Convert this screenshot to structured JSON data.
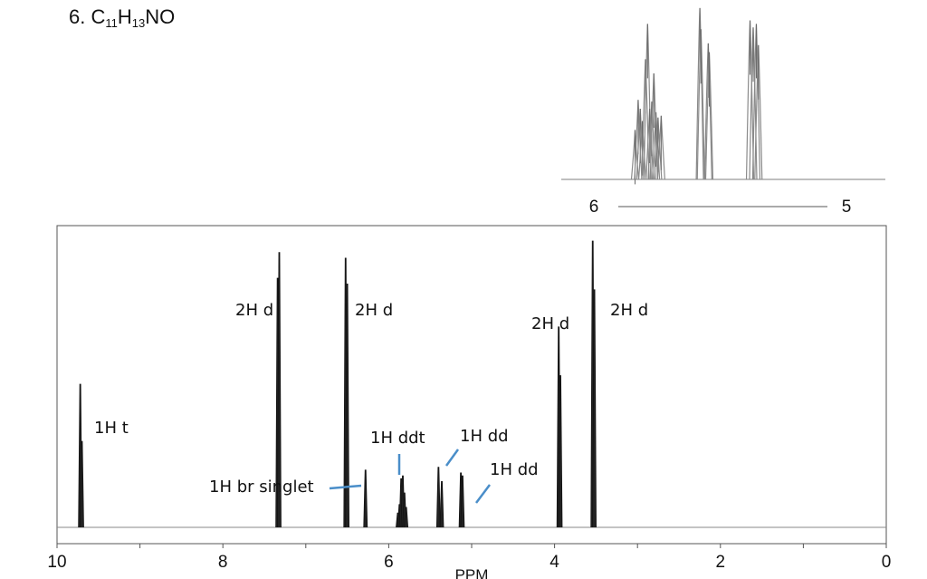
{
  "title": {
    "prefix": "6. C",
    "sub1": "11",
    "mid": "H",
    "sub2": "13",
    "suffix": "NO"
  },
  "chart_data": {
    "type": "line",
    "title": "6. C11H13NO",
    "xlabel": "PPM",
    "ylabel": "",
    "xlim": [
      10,
      0
    ],
    "x_ticks": [
      10,
      8,
      6,
      4,
      2,
      0
    ],
    "grid": false,
    "series": [
      {
        "peaks": [
          {
            "ppm": 9.72,
            "height": 0.5
          },
          {
            "ppm": 9.7,
            "height": 0.3
          },
          {
            "ppm": 7.34,
            "height": 0.87
          },
          {
            "ppm": 7.32,
            "height": 0.96
          },
          {
            "ppm": 6.52,
            "height": 0.94
          },
          {
            "ppm": 6.5,
            "height": 0.85
          },
          {
            "ppm": 6.28,
            "height": 0.2
          },
          {
            "ppm": 5.89,
            "height": 0.05
          },
          {
            "ppm": 5.87,
            "height": 0.08
          },
          {
            "ppm": 5.85,
            "height": 0.17
          },
          {
            "ppm": 5.83,
            "height": 0.18
          },
          {
            "ppm": 5.81,
            "height": 0.12
          },
          {
            "ppm": 5.79,
            "height": 0.07
          },
          {
            "ppm": 5.4,
            "height": 0.21
          },
          {
            "ppm": 5.36,
            "height": 0.16
          },
          {
            "ppm": 5.13,
            "height": 0.19
          },
          {
            "ppm": 5.11,
            "height": 0.18
          },
          {
            "ppm": 3.95,
            "height": 0.7
          },
          {
            "ppm": 3.93,
            "height": 0.53
          },
          {
            "ppm": 3.54,
            "height": 1.0
          },
          {
            "ppm": 3.52,
            "height": 0.83
          }
        ]
      }
    ],
    "annotations": [
      {
        "id": "t1",
        "text": "1H t",
        "ppm": 9.72
      },
      {
        "id": "d1",
        "text": "2H d",
        "ppm": 7.33
      },
      {
        "id": "d2",
        "text": "2H d",
        "ppm": 6.51
      },
      {
        "id": "brs",
        "text": "1H br singlet",
        "ppm": 6.28
      },
      {
        "id": "ddt",
        "text": "1H ddt",
        "ppm": 5.84
      },
      {
        "id": "dd1",
        "text": "1H dd",
        "ppm": 5.38
      },
      {
        "id": "dd2",
        "text": "1H dd",
        "ppm": 5.12
      },
      {
        "id": "d3",
        "text": "2H d",
        "ppm": 3.94
      },
      {
        "id": "d4",
        "text": "2H d",
        "ppm": 3.53
      }
    ],
    "inset": {
      "xlim": [
        6,
        5
      ],
      "x_ticks": [
        6,
        5
      ],
      "peaks": [
        {
          "ppm": 5.92,
          "height": 0.28
        },
        {
          "ppm": 5.905,
          "height": 0.45
        },
        {
          "ppm": 5.895,
          "height": 0.4
        },
        {
          "ppm": 5.885,
          "height": 0.33
        },
        {
          "ppm": 5.87,
          "height": 0.68
        },
        {
          "ppm": 5.86,
          "height": 0.88
        },
        {
          "ppm": 5.85,
          "height": 0.4
        },
        {
          "ppm": 5.84,
          "height": 0.44
        },
        {
          "ppm": 5.83,
          "height": 0.6
        },
        {
          "ppm": 5.82,
          "height": 0.38
        },
        {
          "ppm": 5.81,
          "height": 0.35
        },
        {
          "ppm": 5.795,
          "height": 0.36
        },
        {
          "ppm": 5.61,
          "height": 0.97
        },
        {
          "ppm": 5.605,
          "height": 0.85
        },
        {
          "ppm": 5.57,
          "height": 0.77
        },
        {
          "ppm": 5.565,
          "height": 0.72
        },
        {
          "ppm": 5.37,
          "height": 0.9
        },
        {
          "ppm": 5.355,
          "height": 0.86
        },
        {
          "ppm": 5.34,
          "height": 0.88
        },
        {
          "ppm": 5.33,
          "height": 0.76
        }
      ]
    }
  }
}
